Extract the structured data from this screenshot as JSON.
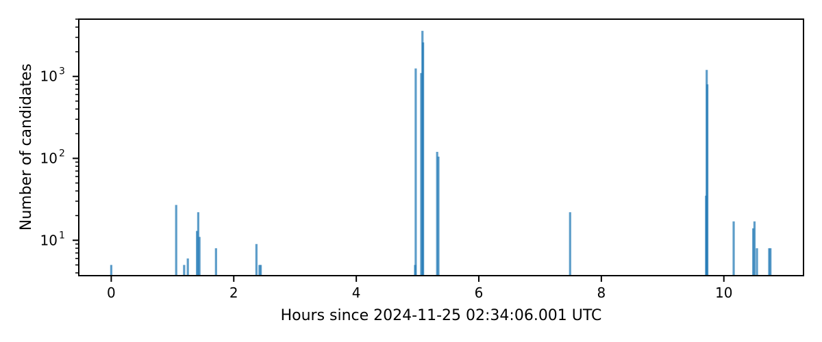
{
  "chart_data": {
    "type": "bar",
    "title": "",
    "xlabel": "Hours since 2024-11-25 02:34:06.001 UTC",
    "ylabel": "Number of candidates",
    "xlim": [
      -0.53,
      11.3
    ],
    "ylim": [
      3.7,
      5000
    ],
    "yscale": "log",
    "grid": false,
    "bar_color": "#1f77b4",
    "bar_opacity": 0.72,
    "x_ticks": [
      0,
      2,
      4,
      6,
      8,
      10
    ],
    "x_tick_labels": [
      "0",
      "2",
      "4",
      "6",
      "8",
      "10"
    ],
    "y_major_ticks": [
      10,
      100,
      1000
    ],
    "y_tick_labels": [
      {
        "base": "10",
        "exp": "1"
      },
      {
        "base": "10",
        "exp": "2"
      },
      {
        "base": "10",
        "exp": "3"
      }
    ],
    "series": [
      {
        "x": [
          0.0,
          1.06,
          1.19,
          1.25,
          1.4,
          1.42,
          1.44,
          1.71,
          2.37,
          2.42,
          2.44,
          4.96,
          4.97,
          5.06,
          5.08,
          5.09,
          5.32,
          5.34,
          7.49,
          9.71,
          9.72,
          9.73,
          10.16,
          10.48,
          10.5,
          10.54,
          10.74,
          10.76
        ],
        "values": [
          5,
          27,
          5,
          6,
          13,
          22,
          11,
          8,
          9,
          5,
          5,
          5,
          1250,
          1100,
          3600,
          2600,
          120,
          105,
          22,
          35,
          1200,
          800,
          17,
          14,
          17,
          8,
          8,
          8
        ]
      }
    ]
  }
}
